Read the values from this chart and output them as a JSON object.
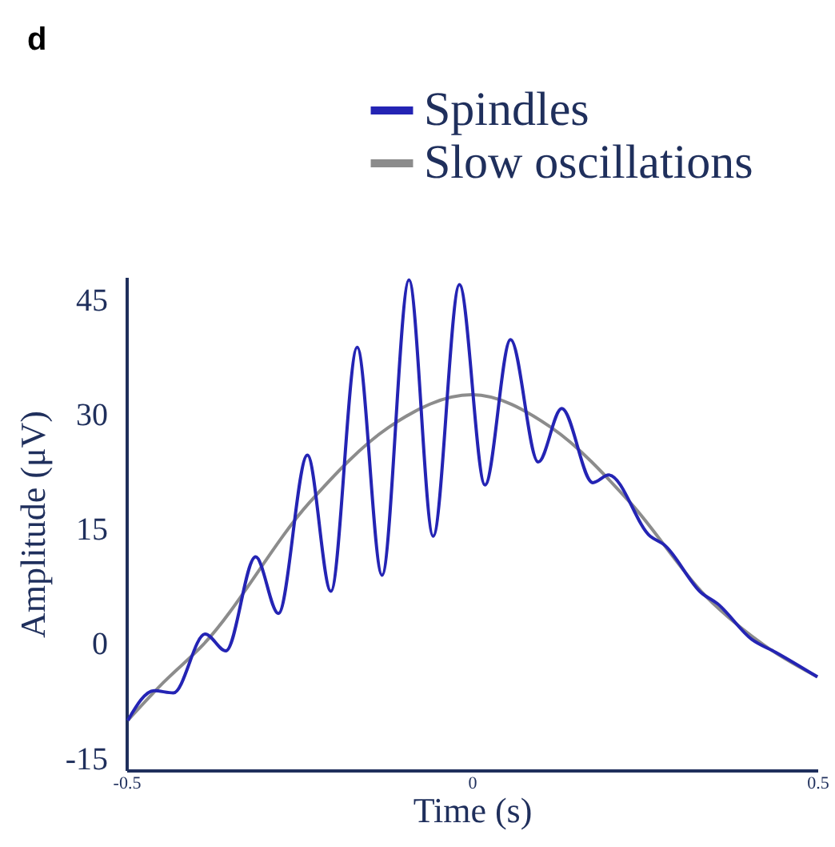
{
  "chart_data": {
    "type": "line",
    "title": "d",
    "xlabel": "Time (s)",
    "ylabel": "Amplitude (μV)",
    "xlim": [
      -0.5,
      0.5
    ],
    "xticks": [
      -0.5,
      0,
      0.5
    ],
    "ylim": [
      -16.5,
      48
    ],
    "yticks": [
      -15,
      0,
      15,
      30,
      45
    ],
    "grid": false,
    "legend": "top right",
    "line_style": "solid",
    "marker": "none",
    "series": [
      {
        "name": "Spindles",
        "color": "#2424b4",
        "x": [
          -0.498,
          -0.46,
          -0.432,
          -0.386,
          -0.356,
          -0.313,
          -0.28,
          -0.238,
          -0.204,
          -0.166,
          -0.13,
          -0.091,
          -0.056,
          -0.018,
          0.019,
          0.056,
          0.096,
          0.13,
          0.175,
          0.198,
          0.258,
          0.278,
          0.332,
          0.355,
          0.405,
          0.44,
          0.5
        ],
        "values": [
          -10.0,
          -6.1,
          -6.4,
          1.3,
          -0.9,
          11.4,
          4.0,
          24.7,
          6.9,
          38.8,
          9.0,
          47.6,
          14.1,
          47.0,
          20.8,
          39.8,
          23.8,
          30.8,
          21.1,
          22.1,
          14.1,
          13.0,
          6.7,
          5.3,
          0.6,
          -1.1,
          -4.3
        ]
      },
      {
        "name": "Slow oscillations",
        "color": "#8c8c8c",
        "x": [
          -0.498,
          -0.446,
          -0.389,
          -0.236,
          -0.121,
          0.0,
          0.115,
          0.23,
          0.338,
          0.422,
          0.5
        ],
        "values": [
          -10.0,
          -5.0,
          -0.1,
          18.4,
          28.3,
          32.6,
          28.3,
          18.4,
          6.3,
          -0.1,
          -4.3
        ]
      }
    ]
  }
}
